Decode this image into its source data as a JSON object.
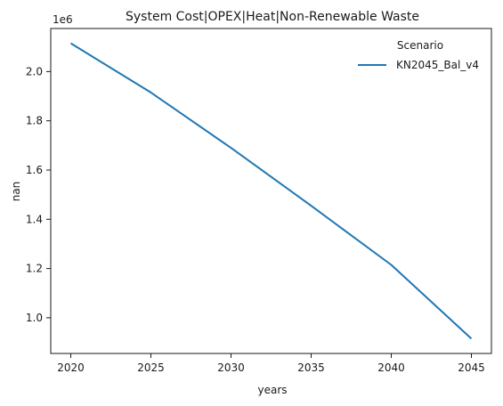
{
  "chart_data": {
    "type": "line",
    "title": "System Cost|OPEX|Heat|Non-Renewable Waste",
    "xlabel": "years",
    "ylabel": "nan",
    "y_offset_label": "1e6",
    "x": [
      2020,
      2025,
      2030,
      2035,
      2040,
      2045
    ],
    "x_ticks": [
      "2020",
      "2025",
      "2030",
      "2035",
      "2040",
      "2045"
    ],
    "y_ticks": [
      "1.0",
      "1.2",
      "1.4",
      "1.6",
      "1.8",
      "2.0"
    ],
    "y_tick_values": [
      1.0,
      1.2,
      1.4,
      1.6,
      1.8,
      2.0
    ],
    "xlim": [
      2018.75,
      2046.25
    ],
    "ylim": [
      0.855,
      2.175
    ],
    "legend": {
      "title": "Scenario",
      "placement": "top-right"
    },
    "series": [
      {
        "name": "KN2045_Bal_v4",
        "color": "#1f77b4",
        "values": [
          2.115,
          1.915,
          1.69,
          1.455,
          1.215,
          0.915
        ]
      }
    ],
    "grid": false
  }
}
